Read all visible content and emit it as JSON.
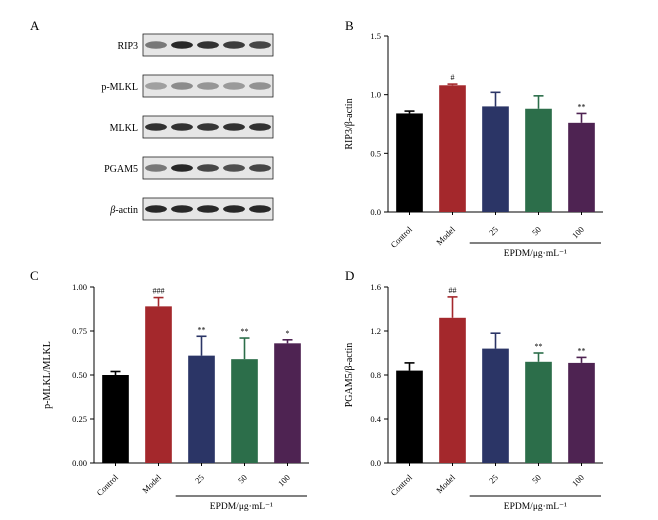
{
  "panel_a": {
    "letter": "A",
    "rows": [
      {
        "label": "RIP3",
        "italic_prefix": "",
        "bands": [
          0.55,
          0.95,
          0.9,
          0.85,
          0.8
        ]
      },
      {
        "label": "p-MLKL",
        "italic_prefix": "",
        "bands": [
          0.35,
          0.45,
          0.4,
          0.38,
          0.42
        ]
      },
      {
        "label": "MLKL",
        "italic_prefix": "",
        "bands": [
          0.9,
          0.9,
          0.88,
          0.9,
          0.9
        ]
      },
      {
        "label": "PGAM5",
        "italic_prefix": "",
        "bands": [
          0.55,
          0.95,
          0.8,
          0.75,
          0.8
        ]
      },
      {
        "label": "-actin",
        "italic_prefix": "β",
        "bands": [
          0.95,
          0.95,
          0.95,
          0.95,
          0.95
        ]
      }
    ]
  },
  "chart_data": [
    {
      "panel": "B",
      "type": "bar",
      "ylabel": "RIP3/β-actin",
      "ylim": [
        0,
        1.5
      ],
      "yticks": [
        "0.0",
        "0.5",
        "1.0",
        "1.5"
      ],
      "ytick_values": [
        0,
        0.5,
        1.0,
        1.5
      ],
      "categories": [
        "Control",
        "Model",
        "25",
        "50",
        "100"
      ],
      "values": [
        0.84,
        1.08,
        0.9,
        0.88,
        0.76
      ],
      "errors": [
        0.02,
        0.01,
        0.12,
        0.11,
        0.08
      ],
      "colors": [
        "#000000",
        "#a4282c",
        "#2b3566",
        "#2c6e4a",
        "#4e2352"
      ],
      "significance": [
        "",
        "#",
        "",
        "",
        "**"
      ],
      "group_label": "EPDM/μg·mL⁻¹",
      "grid": false
    },
    {
      "panel": "C",
      "type": "bar",
      "ylabel": "p-MLKL/MLKL",
      "ylim": [
        0,
        1.0
      ],
      "yticks": [
        "0.00",
        "0.25",
        "0.50",
        "0.75",
        "1.00"
      ],
      "ytick_values": [
        0,
        0.25,
        0.5,
        0.75,
        1.0
      ],
      "categories": [
        "Control",
        "Model",
        "25",
        "50",
        "100"
      ],
      "values": [
        0.5,
        0.89,
        0.61,
        0.59,
        0.68
      ],
      "errors": [
        0.02,
        0.05,
        0.11,
        0.12,
        0.02
      ],
      "colors": [
        "#000000",
        "#a4282c",
        "#2b3566",
        "#2c6e4a",
        "#4e2352"
      ],
      "significance": [
        "",
        "###",
        "**",
        "**",
        "*"
      ],
      "group_label": "EPDM/μg·mL⁻¹",
      "grid": false
    },
    {
      "panel": "D",
      "type": "bar",
      "ylabel": "PGAM5/β-actin",
      "ylim": [
        0,
        1.6
      ],
      "yticks": [
        "0.0",
        "0.4",
        "0.8",
        "1.2",
        "1.6"
      ],
      "ytick_values": [
        0,
        0.4,
        0.8,
        1.2,
        1.6
      ],
      "categories": [
        "Control",
        "Model",
        "25",
        "50",
        "100"
      ],
      "values": [
        0.84,
        1.32,
        1.04,
        0.92,
        0.91
      ],
      "errors": [
        0.07,
        0.19,
        0.14,
        0.08,
        0.05
      ],
      "colors": [
        "#000000",
        "#a4282c",
        "#2b3566",
        "#2c6e4a",
        "#4e2352"
      ],
      "significance": [
        "",
        "##",
        "",
        "**",
        "**"
      ],
      "group_label": "EPDM/μg·mL⁻¹",
      "grid": false
    }
  ]
}
